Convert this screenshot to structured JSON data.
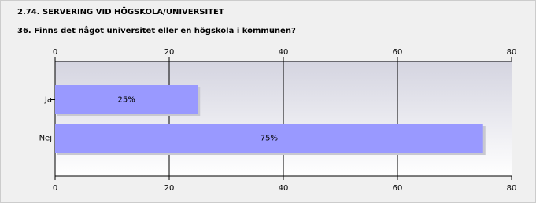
{
  "chart_data": {
    "type": "bar",
    "orientation": "horizontal",
    "title": "2.74. SERVERING VID HÖGSKOLA/UNIVERSITET",
    "subtitle": "36. Finns det något universitet eller en högskola i kommunen?",
    "categories": [
      "Ja",
      "Nej"
    ],
    "values": [
      25,
      75
    ],
    "value_labels": [
      "25%",
      "75%"
    ],
    "color": "#9999ff",
    "xlim": [
      0,
      80
    ],
    "xticks": [
      0,
      20,
      40,
      60,
      80
    ],
    "grid": true
  }
}
